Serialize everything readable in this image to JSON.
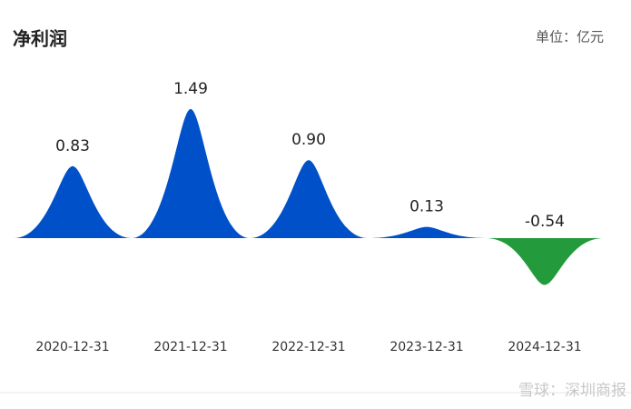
{
  "chart_data": {
    "type": "peak",
    "title": "净利润",
    "unit_label": "单位：亿元",
    "categories": [
      "2020-12-31",
      "2021-12-31",
      "2022-12-31",
      "2023-12-31",
      "2024-12-31"
    ],
    "values": [
      0.83,
      1.49,
      0.9,
      0.13,
      -0.54
    ],
    "value_labels": [
      "0.83",
      "1.49",
      "0.90",
      "0.13",
      "-0.54"
    ],
    "positive_color": "#0051c9",
    "negative_color": "#239a3b",
    "watermark": "雪球：深圳商报"
  }
}
